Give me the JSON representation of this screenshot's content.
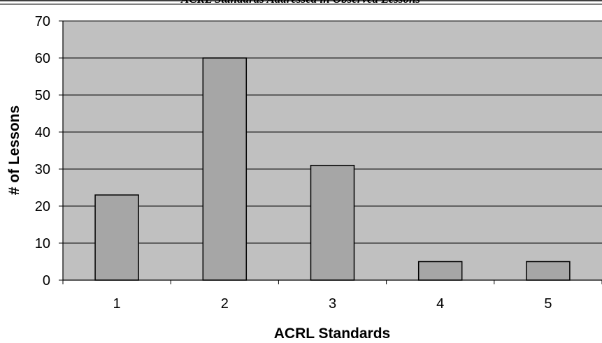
{
  "chart_data": {
    "type": "bar",
    "title": "ACRL Standards Addressed in Observed Lessons",
    "xlabel": "ACRL Standards",
    "ylabel": "# of Lessons",
    "categories": [
      "1",
      "2",
      "3",
      "4",
      "5"
    ],
    "values": [
      23,
      60,
      31,
      5,
      5
    ],
    "ylim": [
      0,
      70
    ],
    "yticks": [
      0,
      10,
      20,
      30,
      40,
      50,
      60,
      70
    ],
    "grid": true,
    "legend": "none",
    "colors": {
      "plot_background": "#c0c0c0",
      "bar_fill": "#a6a6a6",
      "bar_stroke": "#000000",
      "gridline": "#000000"
    }
  }
}
